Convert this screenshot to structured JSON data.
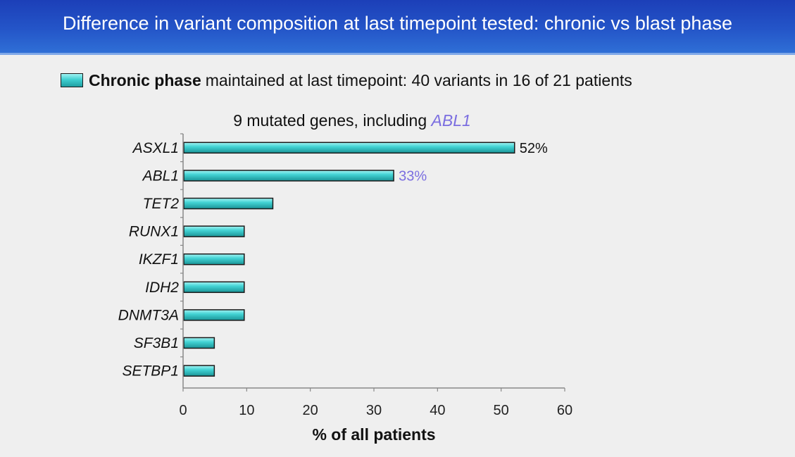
{
  "header": {
    "title": "Difference in variant composition at last timepoint tested: chronic vs blast phase"
  },
  "legend": {
    "bold_label": "Chronic phase",
    "rest_label": "maintained at last timepoint: 40 variants in 16 of 21 patients"
  },
  "colors": {
    "bar_fill": "#3fcfd0",
    "bar_border": "#1a1a1a",
    "highlight": "#7b6ee0",
    "title_bar": "#2455c8"
  },
  "chart_data": {
    "type": "bar",
    "orientation": "horizontal",
    "subtitle_prefix": "9 mutated genes, including ",
    "subtitle_highlight": "ABL1",
    "categories": [
      "ASXL1",
      "ABL1",
      "TET2",
      "RUNX1",
      "IKZF1",
      "IDH2",
      "DNMT3A",
      "SF3B1",
      "SETBP1"
    ],
    "values": [
      52,
      33,
      14,
      9.5,
      9.5,
      9.5,
      9.5,
      4.8,
      4.8
    ],
    "highlighted_category": "ABL1",
    "data_labels": [
      {
        "category": "ASXL1",
        "text": "52%"
      },
      {
        "category": "ABL1",
        "text": "33%"
      }
    ],
    "xlabel": "% of all patients",
    "ylabel": "",
    "xlim": [
      0,
      60
    ],
    "xticks": [
      0,
      10,
      20,
      30,
      40,
      50,
      60
    ],
    "grid": false,
    "legend_position": "top"
  }
}
